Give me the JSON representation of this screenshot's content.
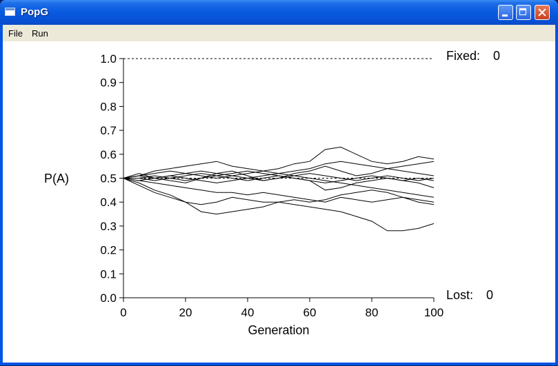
{
  "window": {
    "title": "PopG"
  },
  "menu": {
    "items": [
      {
        "label": "File"
      },
      {
        "label": "Run"
      }
    ]
  },
  "chart_data": {
    "type": "line",
    "title": "",
    "xlabel": "Generation",
    "ylabel": "P(A)",
    "xlim": [
      0,
      100
    ],
    "ylim": [
      0,
      1
    ],
    "x_ticks": [
      "0",
      "20",
      "40",
      "60",
      "80",
      "100"
    ],
    "y_ticks": [
      "0.0",
      "0.1",
      "0.2",
      "0.3",
      "0.4",
      "0.5",
      "0.6",
      "0.7",
      "0.8",
      "0.9",
      "1.0"
    ],
    "x": [
      0,
      5,
      10,
      15,
      20,
      25,
      30,
      35,
      40,
      45,
      50,
      55,
      60,
      65,
      70,
      75,
      80,
      85,
      90,
      95,
      100
    ],
    "series": [
      {
        "values": [
          0.5,
          0.48,
          0.45,
          0.43,
          0.4,
          0.36,
          0.35,
          0.36,
          0.37,
          0.38,
          0.4,
          0.41,
          0.4,
          0.41,
          0.43,
          0.44,
          0.45,
          0.44,
          0.42,
          0.41,
          0.4
        ]
      },
      {
        "values": [
          0.5,
          0.47,
          0.44,
          0.42,
          0.4,
          0.39,
          0.4,
          0.42,
          0.41,
          0.4,
          0.4,
          0.39,
          0.38,
          0.37,
          0.36,
          0.34,
          0.32,
          0.28,
          0.28,
          0.29,
          0.31
        ]
      },
      {
        "values": [
          0.5,
          0.51,
          0.53,
          0.54,
          0.55,
          0.56,
          0.57,
          0.55,
          0.54,
          0.53,
          0.54,
          0.56,
          0.57,
          0.62,
          0.63,
          0.6,
          0.57,
          0.56,
          0.57,
          0.59,
          0.58
        ]
      },
      {
        "values": [
          0.5,
          0.52,
          0.5,
          0.49,
          0.48,
          0.5,
          0.52,
          0.53,
          0.51,
          0.49,
          0.5,
          0.52,
          0.53,
          0.55,
          0.53,
          0.51,
          0.52,
          0.54,
          0.55,
          0.56,
          0.57
        ]
      },
      {
        "values": [
          0.5,
          0.49,
          0.48,
          0.47,
          0.46,
          0.45,
          0.44,
          0.44,
          0.43,
          0.44,
          0.43,
          0.42,
          0.41,
          0.4,
          0.42,
          0.41,
          0.4,
          0.41,
          0.42,
          0.4,
          0.39
        ]
      },
      {
        "values": [
          0.5,
          0.51,
          0.5,
          0.51,
          0.52,
          0.53,
          0.52,
          0.51,
          0.52,
          0.53,
          0.52,
          0.51,
          0.5,
          0.49,
          0.48,
          0.47,
          0.46,
          0.45,
          0.44,
          0.43,
          0.42
        ]
      },
      {
        "values": [
          0.5,
          0.5,
          0.51,
          0.5,
          0.49,
          0.5,
          0.51,
          0.52,
          0.53,
          0.52,
          0.51,
          0.5,
          0.49,
          0.45,
          0.46,
          0.48,
          0.49,
          0.5,
          0.49,
          0.48,
          0.46
        ]
      },
      {
        "values": [
          0.5,
          0.49,
          0.5,
          0.51,
          0.5,
          0.49,
          0.48,
          0.49,
          0.5,
          0.51,
          0.52,
          0.53,
          0.54,
          0.56,
          0.57,
          0.56,
          0.55,
          0.54,
          0.53,
          0.52,
          0.51
        ]
      },
      {
        "values": [
          0.5,
          0.51,
          0.52,
          0.53,
          0.52,
          0.51,
          0.5,
          0.51,
          0.5,
          0.49,
          0.5,
          0.51,
          0.52,
          0.51,
          0.5,
          0.49,
          0.5,
          0.51,
          0.5,
          0.49,
          0.5
        ]
      },
      {
        "values": [
          0.5,
          0.5,
          0.49,
          0.5,
          0.51,
          0.52,
          0.51,
          0.5,
          0.49,
          0.5,
          0.51,
          0.5,
          0.49,
          0.48,
          0.49,
          0.5,
          0.51,
          0.5,
          0.49,
          0.5,
          0.49
        ]
      }
    ]
  },
  "fixed": {
    "label": "Fixed:",
    "value": "0"
  },
  "lost": {
    "label": "Lost:",
    "value": "0"
  }
}
